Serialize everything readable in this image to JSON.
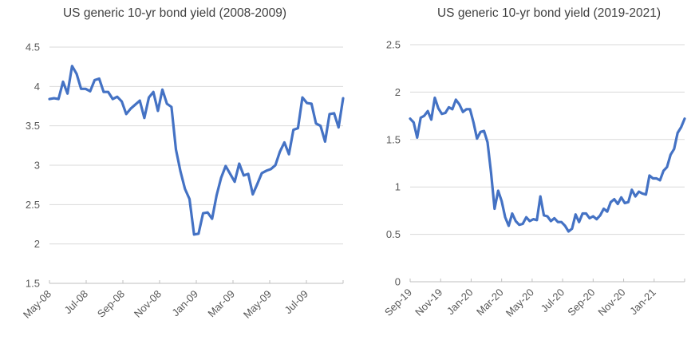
{
  "styles": {
    "line_color": "#4472C4",
    "gridline_color": "#D9D9D9",
    "axis_color": "#BFBFBF",
    "tick_label_color": "#595959",
    "title_color": "#404040",
    "background": "#FFFFFF"
  },
  "chart_data": [
    {
      "type": "line",
      "title": "US generic 10-yr bond yield (2008-2009)",
      "xlabel": "",
      "ylabel": "",
      "ylim": [
        1.5,
        4.5
      ],
      "grid": true,
      "legend": "none",
      "x_tick_labels": [
        "May-08",
        "Jul-08",
        "Sep-08",
        "Nov-08",
        "Jan-09",
        "Mar-09",
        "May-09",
        "Jul-09"
      ],
      "y_tick_values": [
        4.5,
        4,
        3.5,
        3,
        2.5,
        2,
        1.5
      ],
      "y_tick_labels": [
        "4.5",
        "4",
        "3.5",
        "3",
        "2.5",
        "2",
        "1.5"
      ],
      "x_unit": "weekly",
      "series": [
        {
          "name": "US generic 10-yr bond yield",
          "color": "#4472C4",
          "values": [
            3.84,
            3.85,
            3.84,
            4.06,
            3.91,
            4.26,
            4.16,
            3.97,
            3.97,
            3.94,
            4.08,
            4.1,
            3.93,
            3.93,
            3.84,
            3.87,
            3.81,
            3.65,
            3.72,
            3.77,
            3.82,
            3.6,
            3.86,
            3.93,
            3.69,
            3.96,
            3.78,
            3.74,
            3.2,
            2.92,
            2.7,
            2.57,
            2.12,
            2.13,
            2.39,
            2.4,
            2.32,
            2.62,
            2.84,
            2.99,
            2.89,
            2.79,
            3.02,
            2.87,
            2.89,
            2.63,
            2.76,
            2.9,
            2.93,
            2.95,
            3.0,
            3.17,
            3.29,
            3.14,
            3.45,
            3.47,
            3.86,
            3.79,
            3.78,
            3.53,
            3.5,
            3.3,
            3.65,
            3.66,
            3.48,
            3.85
          ]
        }
      ]
    },
    {
      "type": "line",
      "title": "US generic 10-yr bond yield (2019-2021)",
      "xlabel": "",
      "ylabel": "",
      "ylim": [
        0,
        2.5
      ],
      "grid": true,
      "legend": "none",
      "x_tick_labels": [
        "Sep-19",
        "Nov-19",
        "Jan-20",
        "Mar-20",
        "May-20",
        "Jul-20",
        "Sep-20",
        "Nov-20",
        "Jan-21"
      ],
      "y_tick_values": [
        2.5,
        2,
        1.5,
        1,
        0.5,
        0
      ],
      "y_tick_labels": [
        "2.5",
        "2",
        "1.5",
        "1",
        "0.5",
        "0"
      ],
      "x_unit": "weekly",
      "series": [
        {
          "name": "US generic 10-yr bond yield",
          "color": "#4472C4",
          "values": [
            1.72,
            1.68,
            1.52,
            1.73,
            1.75,
            1.8,
            1.71,
            1.94,
            1.83,
            1.77,
            1.78,
            1.84,
            1.82,
            1.92,
            1.87,
            1.79,
            1.82,
            1.82,
            1.68,
            1.51,
            1.58,
            1.59,
            1.47,
            1.15,
            0.77,
            0.96,
            0.85,
            0.68,
            0.59,
            0.72,
            0.64,
            0.6,
            0.61,
            0.68,
            0.64,
            0.66,
            0.65,
            0.9,
            0.7,
            0.69,
            0.64,
            0.67,
            0.63,
            0.63,
            0.59,
            0.53,
            0.56,
            0.71,
            0.63,
            0.72,
            0.72,
            0.67,
            0.69,
            0.66,
            0.7,
            0.77,
            0.74,
            0.84,
            0.87,
            0.82,
            0.89,
            0.83,
            0.84,
            0.97,
            0.9,
            0.95,
            0.93,
            0.92,
            1.12,
            1.09,
            1.09,
            1.07,
            1.17,
            1.21,
            1.34,
            1.4,
            1.57,
            1.63,
            1.72
          ]
        }
      ]
    }
  ]
}
